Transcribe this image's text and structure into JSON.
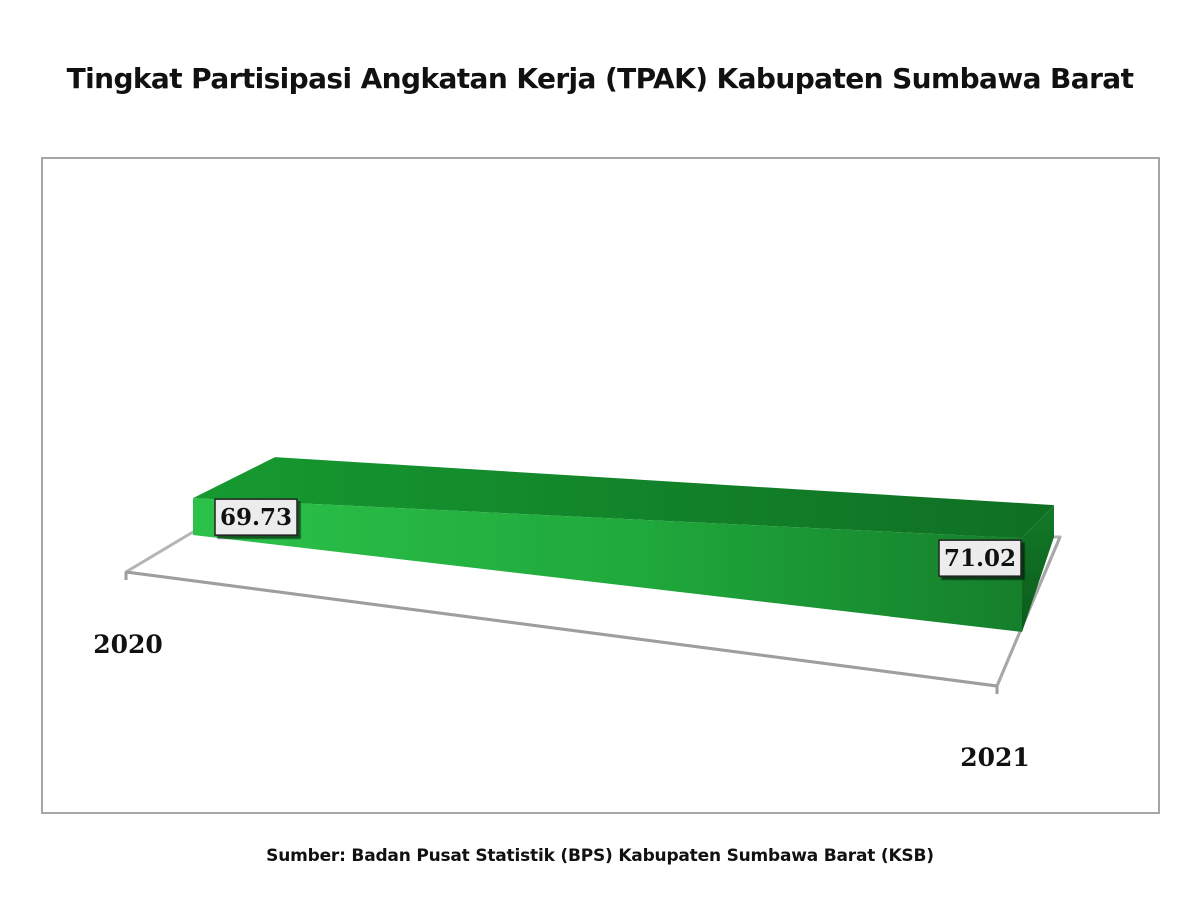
{
  "chart_data": {
    "type": "area",
    "title": "Tingkat Partisipasi Angkatan Kerja (TPAK) Kabupaten Sumbawa Barat",
    "categories": [
      "2020",
      "2021"
    ],
    "series": [
      {
        "values": [
          69.73,
          71.02
        ]
      }
    ],
    "data_labels": [
      "69.73",
      "71.02"
    ],
    "xlabel": "",
    "ylabel": "",
    "ylim": [
      69.0,
      71.5
    ],
    "grid": false,
    "legend": "none",
    "style": "3d",
    "colors": {
      "front": "#1fb33c",
      "top": "#137a28",
      "side": "#0f6a22",
      "floor_line": "#b5b5b5",
      "label_bg": "#ececec"
    }
  },
  "source": "Sumber: Badan Pusat Statistik (BPS) Kabupaten Sumbawa Barat (KSB)"
}
